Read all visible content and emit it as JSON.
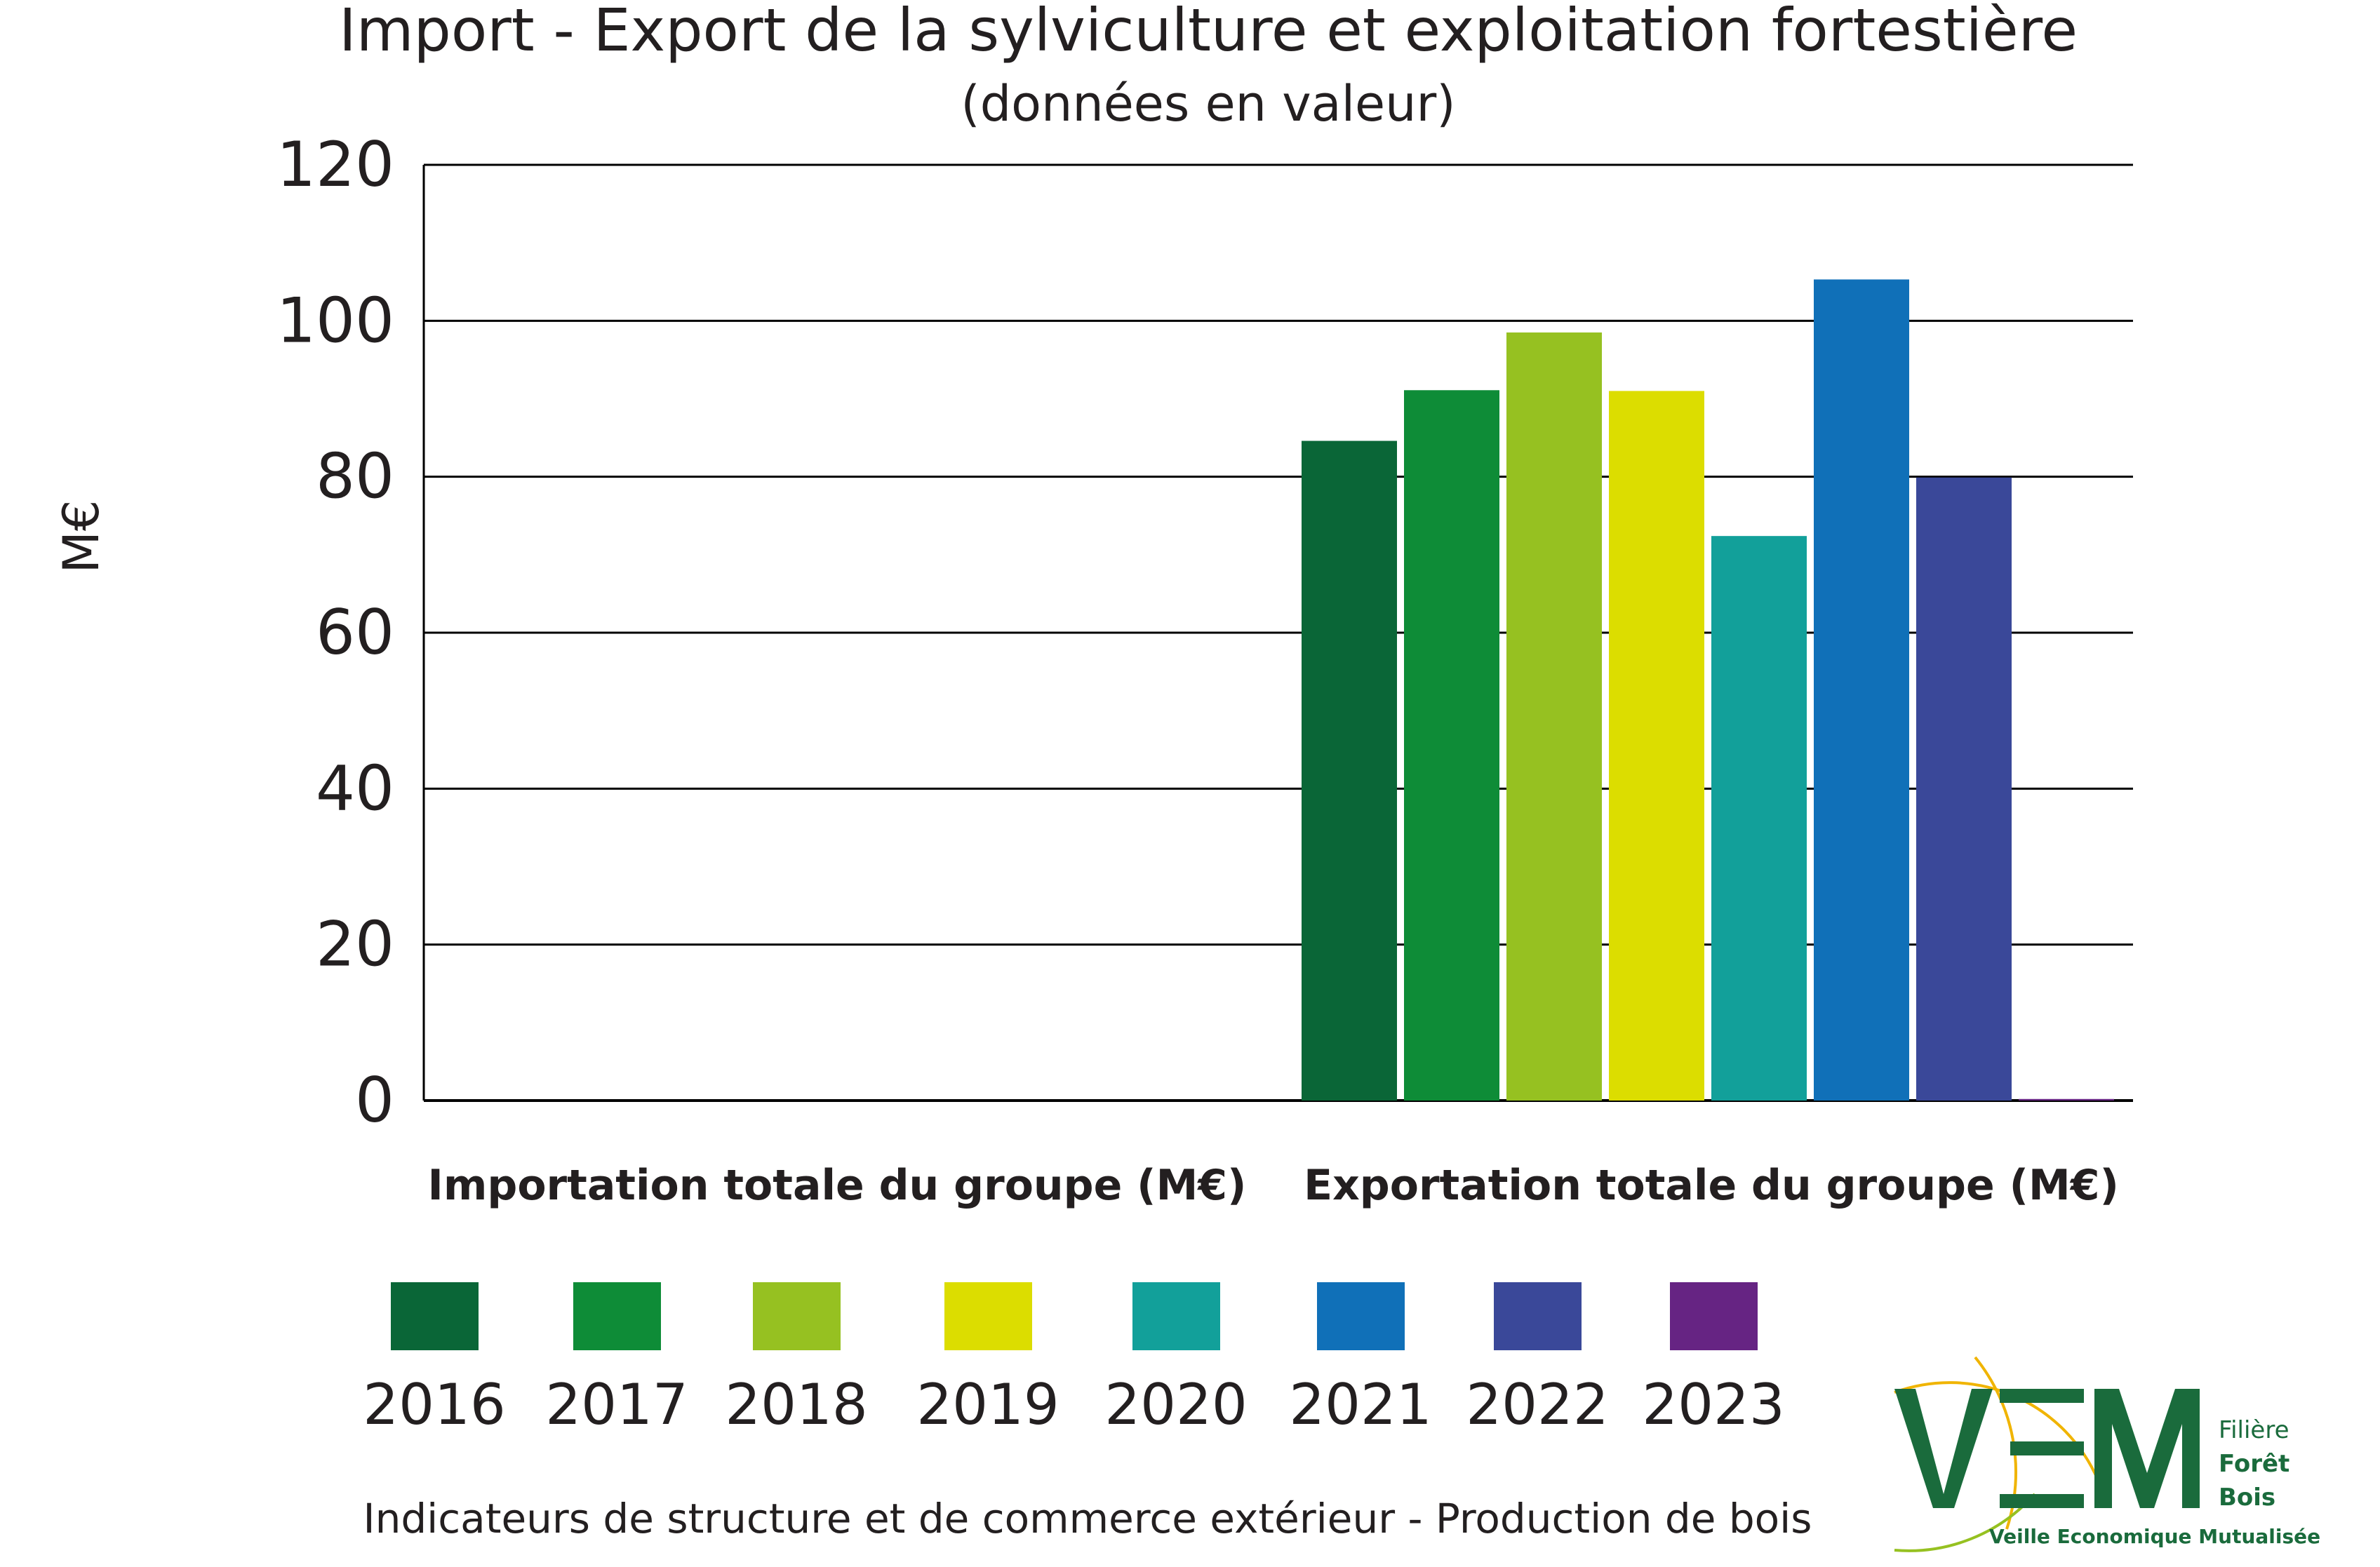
{
  "chart_data": {
    "type": "bar",
    "title": "Import - Export de la sylviculture et exploitation fortestière",
    "subtitle": "(données en valeur)",
    "ylabel": "M€",
    "xlabel": "",
    "ylim": [
      0,
      120
    ],
    "yticks": [
      0,
      20,
      40,
      60,
      80,
      100,
      120
    ],
    "grid": true,
    "legend_position": "bottom",
    "categories": [
      "Importation totale du groupe (M€)",
      "Exportation totale du groupe (M€)"
    ],
    "series": [
      {
        "name": "2016",
        "color": "#0a6637",
        "values": [
          0,
          84.6
        ]
      },
      {
        "name": "2017",
        "color": "#0e8c37",
        "values": [
          0,
          91.1
        ]
      },
      {
        "name": "2018",
        "color": "#96c121",
        "values": [
          0,
          98.5
        ]
      },
      {
        "name": "2019",
        "color": "#dcdd00",
        "values": [
          0,
          91.0
        ]
      },
      {
        "name": "2020",
        "color": "#12a09a",
        "values": [
          0,
          72.4
        ]
      },
      {
        "name": "2021",
        "color": "#1070b8",
        "values": [
          0,
          105.3
        ]
      },
      {
        "name": "2022",
        "color": "#3a4899",
        "values": [
          0,
          79.9
        ]
      },
      {
        "name": "2023",
        "color": "#662483",
        "values": [
          0,
          0.2
        ]
      }
    ]
  },
  "footer": "Indicateurs de structure et de commerce extérieur - Production de bois",
  "logo": {
    "letters": "VEM",
    "line1": "Filière",
    "line2": "Forêt",
    "line3": "Bois",
    "tagline": "Veille Economique Mutualisée"
  }
}
